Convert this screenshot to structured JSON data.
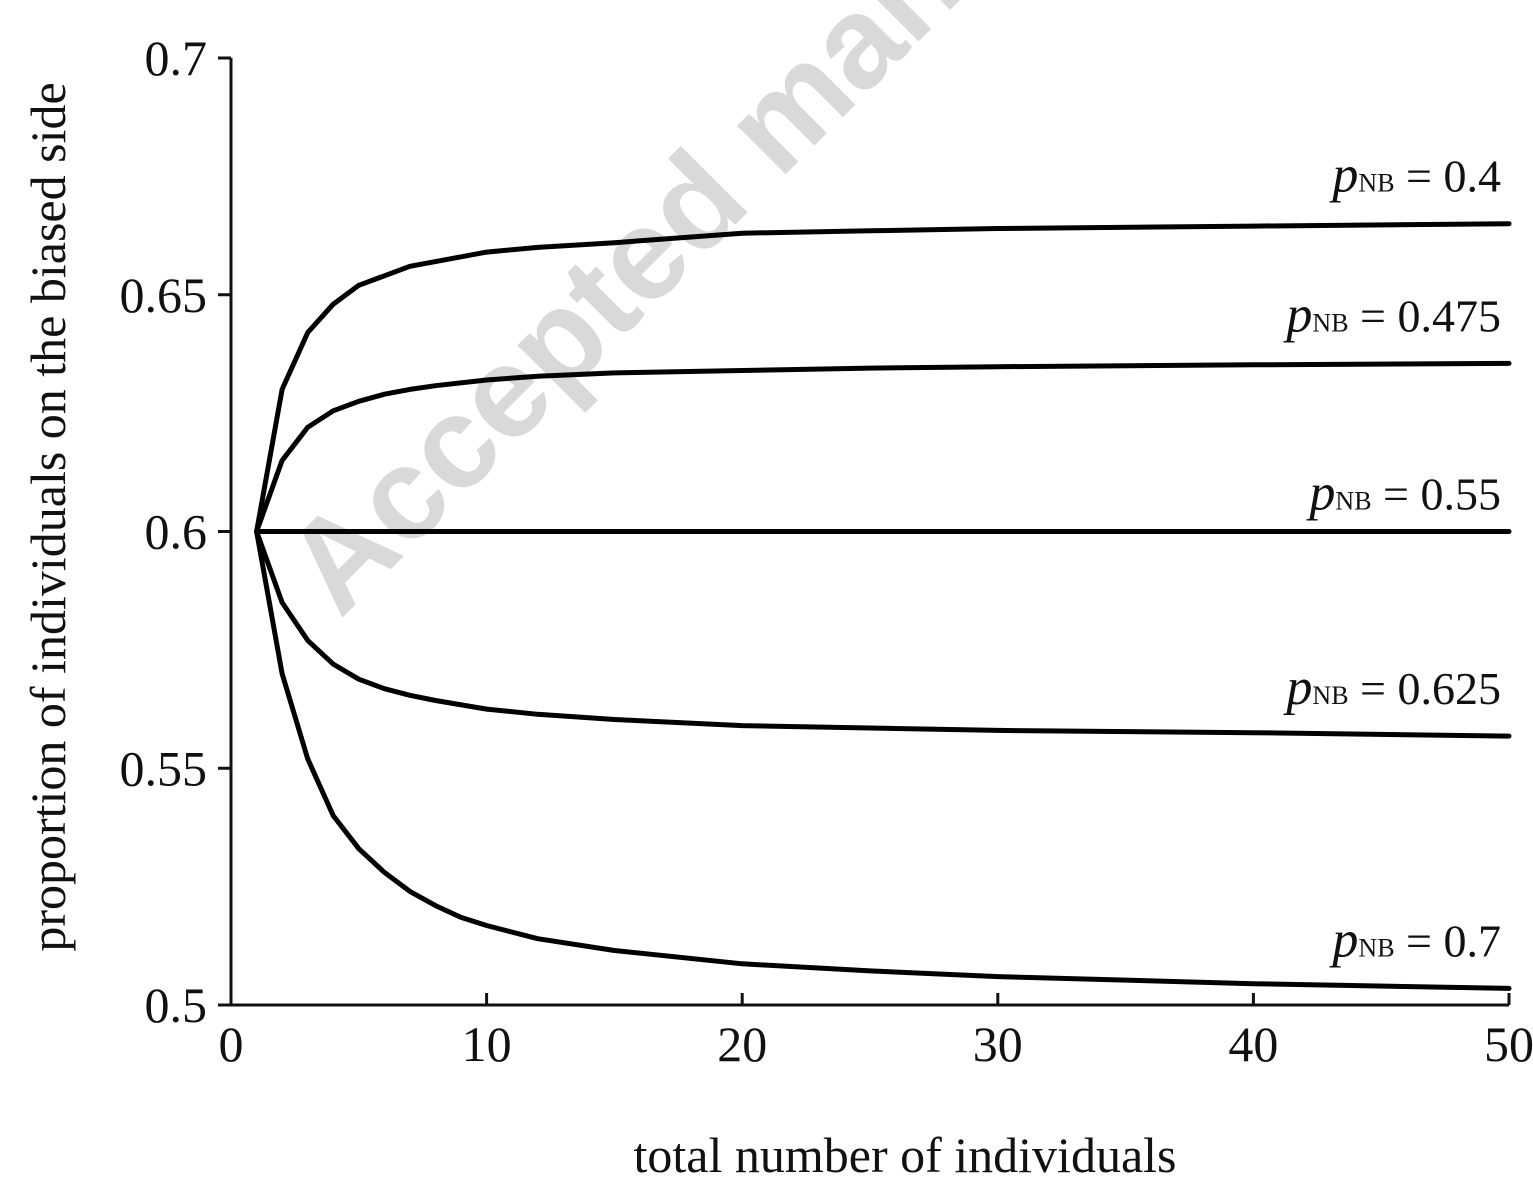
{
  "watermark": "Accepted manus",
  "chart_data": {
    "type": "line",
    "xlabel": "total number of individuals",
    "ylabel": "proportion of individuals on the biased side",
    "xlim": [
      0,
      50
    ],
    "ylim": [
      0.5,
      0.7
    ],
    "xticks": [
      0,
      10,
      20,
      30,
      40,
      50
    ],
    "yticks": [
      0.5,
      0.55,
      0.6,
      0.65,
      0.7
    ],
    "xtick_labels": [
      "0",
      "10",
      "20",
      "30",
      "40",
      "50"
    ],
    "ytick_labels": [
      "0.5",
      "0.55",
      "0.6",
      "0.65",
      "0.7"
    ],
    "grid": false,
    "line_color": "#000000",
    "series": [
      {
        "name": "pNB = 0.4",
        "label_parts": {
          "p": "p",
          "sub": "NB",
          "rest": " = 0.4"
        },
        "x": [
          1,
          2,
          3,
          4,
          5,
          6,
          7,
          8,
          10,
          12,
          15,
          20,
          25,
          30,
          40,
          50
        ],
        "y": [
          0.6,
          0.63,
          0.642,
          0.648,
          0.652,
          0.654,
          0.656,
          0.657,
          0.659,
          0.66,
          0.661,
          0.663,
          0.6635,
          0.664,
          0.6645,
          0.665
        ]
      },
      {
        "name": "pNB = 0.475",
        "label_parts": {
          "p": "p",
          "sub": "NB",
          "rest": " = 0.475"
        },
        "x": [
          1,
          2,
          3,
          4,
          5,
          6,
          7,
          8,
          10,
          12,
          15,
          20,
          25,
          30,
          40,
          50
        ],
        "y": [
          0.6,
          0.615,
          0.622,
          0.6255,
          0.6275,
          0.629,
          0.63,
          0.6308,
          0.632,
          0.6328,
          0.6335,
          0.634,
          0.6345,
          0.6348,
          0.6352,
          0.6355
        ]
      },
      {
        "name": "pNB = 0.55",
        "label_parts": {
          "p": "p",
          "sub": "NB",
          "rest": " = 0.55"
        },
        "x": [
          1,
          50
        ],
        "y": [
          0.6,
          0.6
        ]
      },
      {
        "name": "pNB = 0.625",
        "label_parts": {
          "p": "p",
          "sub": "NB",
          "rest": " = 0.625"
        },
        "x": [
          1,
          2,
          3,
          4,
          5,
          6,
          7,
          8,
          10,
          12,
          15,
          20,
          25,
          30,
          40,
          50
        ],
        "y": [
          0.6,
          0.585,
          0.577,
          0.572,
          0.5688,
          0.5668,
          0.5654,
          0.5643,
          0.5625,
          0.5614,
          0.5603,
          0.559,
          0.5585,
          0.558,
          0.5575,
          0.5568
        ]
      },
      {
        "name": "pNB = 0.7",
        "label_parts": {
          "p": "p",
          "sub": "NB",
          "rest": " = 0.7"
        },
        "x": [
          1,
          2,
          3,
          4,
          5,
          6,
          7,
          8,
          9,
          10,
          12,
          15,
          20,
          25,
          30,
          40,
          50
        ],
        "y": [
          0.6,
          0.57,
          0.552,
          0.54,
          0.533,
          0.528,
          0.524,
          0.521,
          0.5185,
          0.5168,
          0.514,
          0.5115,
          0.5087,
          0.5072,
          0.506,
          0.5045,
          0.5035
        ]
      }
    ]
  }
}
